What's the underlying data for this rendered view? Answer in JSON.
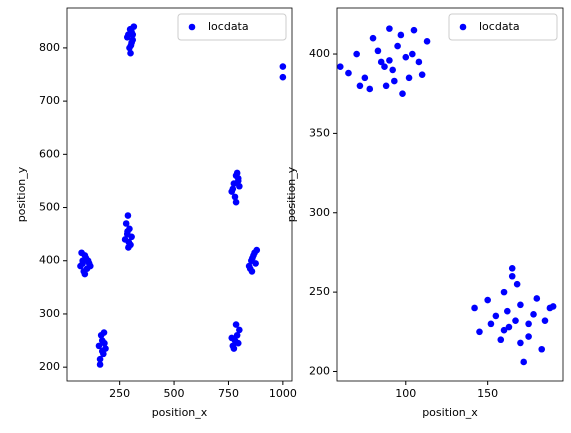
{
  "chart_data": [
    {
      "type": "scatter",
      "xlabel": "position_x",
      "ylabel": "position_y",
      "xlim": [
        8,
        1042
      ],
      "ylim": [
        174,
        875
      ],
      "xticks": [
        250,
        500,
        750,
        1000
      ],
      "yticks": [
        200,
        300,
        400,
        500,
        600,
        700,
        800
      ],
      "legend": "upper right",
      "series": [
        {
          "name": "locdata",
          "color": "#0000ff",
          "x": [
            290,
            300,
            310,
            295,
            305,
            315,
            300,
            285,
            305,
            310,
            298,
            302,
            70,
            80,
            90,
            100,
            110,
            85,
            95,
            75,
            105,
            115,
            90,
            80,
            160,
            170,
            180,
            165,
            175,
            155,
            185,
            170,
            160,
            178,
            275,
            285,
            295,
            300,
            290,
            280,
            305,
            288,
            292,
            286,
            765,
            775,
            785,
            795,
            800,
            780,
            790,
            770,
            785,
            795,
            770,
            780,
            790,
            800,
            775,
            785,
            795,
            765,
            845,
            855,
            865,
            875,
            860,
            850,
            870,
            880,
            858,
            1000,
            1000
          ],
          "values": [
            825,
            835,
            815,
            800,
            830,
            840,
            790,
            820,
            810,
            825,
            835,
            805,
            390,
            400,
            410,
            385,
            395,
            380,
            405,
            415,
            400,
            390,
            375,
            395,
            215,
            230,
            245,
            260,
            225,
            240,
            235,
            250,
            205,
            265,
            440,
            450,
            460,
            430,
            425,
            470,
            445,
            485,
            435,
            455,
            530,
            545,
            560,
            550,
            540,
            520,
            565,
            535,
            510,
            555,
            240,
            250,
            260,
            270,
            235,
            280,
            245,
            255,
            390,
            400,
            410,
            395,
            405,
            385,
            415,
            420,
            380,
            765,
            745
          ]
        }
      ]
    },
    {
      "type": "scatter",
      "xlabel": "position_x",
      "ylabel": "position_y",
      "xlim": [
        58,
        196
      ],
      "ylim": [
        194,
        429
      ],
      "xticks": [
        100,
        150
      ],
      "yticks": [
        200,
        250,
        300,
        350,
        400
      ],
      "legend": "upper right",
      "series": [
        {
          "name": "locdata",
          "color": "#0000ff",
          "x": [
            60,
            65,
            70,
            75,
            80,
            85,
            88,
            90,
            92,
            95,
            98,
            100,
            102,
            105,
            108,
            110,
            113,
            78,
            83,
            87,
            93,
            97,
            72,
            104,
            90,
            142,
            145,
            150,
            152,
            155,
            158,
            160,
            162,
            163,
            165,
            167,
            168,
            170,
            172,
            175,
            178,
            180,
            183,
            185,
            188,
            190,
            160,
            170,
            165,
            175
          ],
          "values": [
            392,
            388,
            400,
            385,
            410,
            395,
            380,
            416,
            390,
            405,
            375,
            398,
            385,
            415,
            395,
            387,
            408,
            378,
            402,
            392,
            383,
            412,
            380,
            400,
            396,
            240,
            225,
            245,
            230,
            235,
            220,
            250,
            238,
            228,
            265,
            232,
            255,
            242,
            206,
            222,
            236,
            246,
            214,
            232,
            240,
            241,
            226,
            218,
            260,
            230
          ]
        }
      ]
    }
  ]
}
